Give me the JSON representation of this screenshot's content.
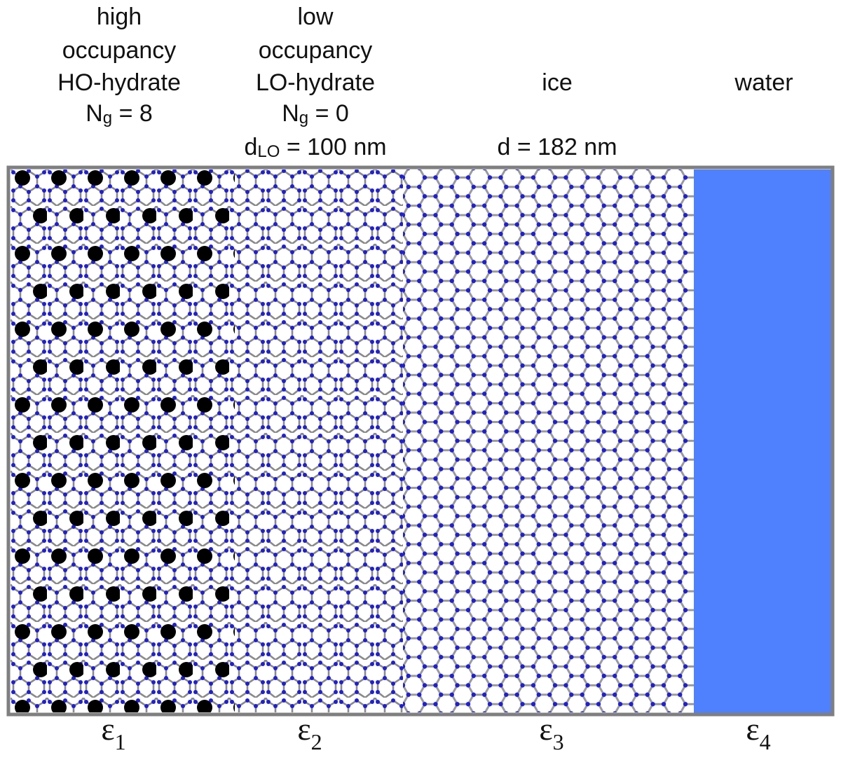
{
  "regions": [
    {
      "lines": [
        "high",
        "occupancy",
        "HO-hydrate",
        {
          "base": "N",
          "sub": "g",
          "rest": " = 8"
        }
      ],
      "epsilon": {
        "base": "ε",
        "sub": "1"
      }
    },
    {
      "lines": [
        "low",
        "occupancy",
        "LO-hydrate",
        {
          "base": "N",
          "sub": "g",
          "rest": " = 0"
        },
        {
          "base": "d",
          "sub": "LO",
          "rest": " = 100 nm"
        }
      ],
      "epsilon": {
        "base": "ε",
        "sub": "2"
      }
    },
    {
      "lines": [
        "ice",
        "d = 182 nm"
      ],
      "epsilon": {
        "base": "ε",
        "sub": "3"
      }
    },
    {
      "lines": [
        "water"
      ],
      "epsilon": {
        "base": "ε",
        "sub": "4"
      }
    }
  ]
}
